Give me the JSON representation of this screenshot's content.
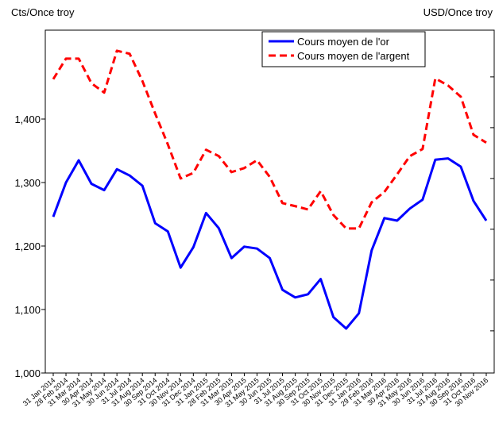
{
  "chart_data": {
    "type": "line",
    "y_axis_label": "Cts/Once troy",
    "y2_axis_label": "USD/Once troy",
    "categories": [
      "31 Jan 2014",
      "28 Feb 2014",
      "31 Mar 2014",
      "30 Apr 2014",
      "31 May 2014",
      "30 Jun 2014",
      "31 Jul 2014",
      "31 Aug 2014",
      "30 Sep 2014",
      "31 Oct 2014",
      "30 Nov 2014",
      "31 Dec 2014",
      "31 Jan 2015",
      "28 Feb 2015",
      "31 Mar 2015",
      "30 Apr 2015",
      "31 May 2015",
      "30 Jun 2015",
      "31 Jul 2015",
      "31 Aug 2015",
      "30 Sep 2015",
      "31 Oct 2015",
      "30 Nov 2015",
      "31 Dec 2015",
      "31 Jan 2016",
      "29 Feb 2016",
      "31 Mar 2016",
      "30 Apr 2016",
      "31 May 2016",
      "30 Jun 2016",
      "31 Jul 2016",
      "31 Aug 2016",
      "30 Sep 2016",
      "31 Oct 2016",
      "30 Nov 2016"
    ],
    "series": [
      {
        "name": "Cours moyen de l'or",
        "color": "#0000ff",
        "dash": false,
        "values": [
          1246,
          1300,
          1335,
          1298,
          1288,
          1321,
          1311,
          1295,
          1236,
          1223,
          1166,
          1198,
          1252,
          1228,
          1181,
          1199,
          1196,
          1181,
          1131,
          1119,
          1124,
          1148,
          1088,
          1070,
          1094,
          1193,
          1244,
          1240,
          1259,
          1273,
          1336,
          1338,
          1325,
          1271,
          1240
        ]
      },
      {
        "name": "Cours moyen de l'argent",
        "color": "#ff0000",
        "dash": true,
        "axis": "y2",
        "values": [
          19.91,
          20.72,
          20.72,
          19.75,
          19.38,
          21.03,
          20.91,
          19.84,
          18.56,
          17.34,
          16.0,
          16.22,
          17.13,
          16.88,
          16.25,
          16.41,
          16.72,
          16.06,
          15.03,
          14.91,
          14.78,
          15.5,
          14.56,
          14.03,
          14.03,
          15.06,
          15.47,
          16.16,
          16.88,
          17.16,
          19.94,
          19.66,
          19.22,
          17.72,
          17.41
        ]
      }
    ],
    "ylim": [
      1000,
      1540
    ],
    "yticks": [
      {
        "value": 1000,
        "label": "1,000"
      },
      {
        "value": 1100,
        "label": "1,100"
      },
      {
        "value": 1200,
        "label": "1,200"
      },
      {
        "value": 1300,
        "label": "1,300"
      },
      {
        "value": 1400,
        "label": "1,400"
      }
    ],
    "y2lim": [
      8.34,
      21.84
    ],
    "y2ticks": [
      10,
      12,
      14,
      16,
      18,
      20
    ],
    "legend": "upper right",
    "grid": false
  }
}
